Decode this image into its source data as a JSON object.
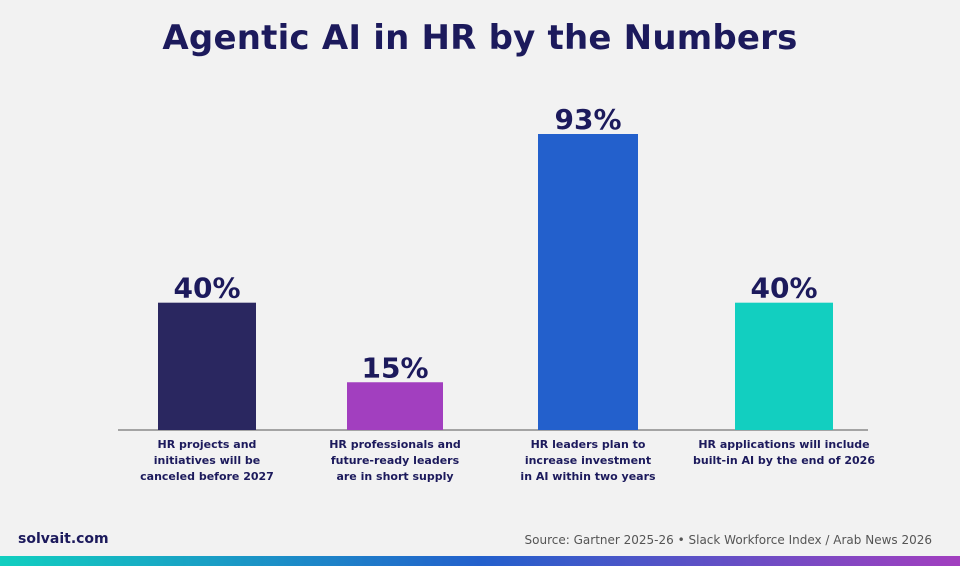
{
  "title": "Agentic AI in HR by the Numbers",
  "chart_data": {
    "type": "bar",
    "categories": [
      [
        "HR projects and",
        "initiatives will be",
        "canceled before 2027"
      ],
      [
        "HR professionals and",
        "future-ready leaders",
        "are in short supply"
      ],
      [
        "HR leaders plan to",
        "increase investment",
        "in AI within two years"
      ],
      [
        "HR applications will include",
        "built-in AI by the end of 2026"
      ]
    ],
    "values": [
      40,
      15,
      93,
      40
    ],
    "value_labels": [
      "40%",
      "15%",
      "93%",
      "40%"
    ],
    "colors": [
      "#2a2760",
      "#a23fbf",
      "#2360cc",
      "#12cfc0"
    ],
    "ylim": [
      0,
      100
    ],
    "grid": false,
    "legend": "none"
  },
  "footer": {
    "site": "solvait.com",
    "source": "Source: Gartner 2025-26  •  Slack Workforce Index / Arab News 2026"
  },
  "colors": {
    "title": "#1c1a5c",
    "background": "#f2f2f2",
    "strip_gradient": [
      "#12cfc0",
      "#2360cc",
      "#a23fbf"
    ]
  }
}
